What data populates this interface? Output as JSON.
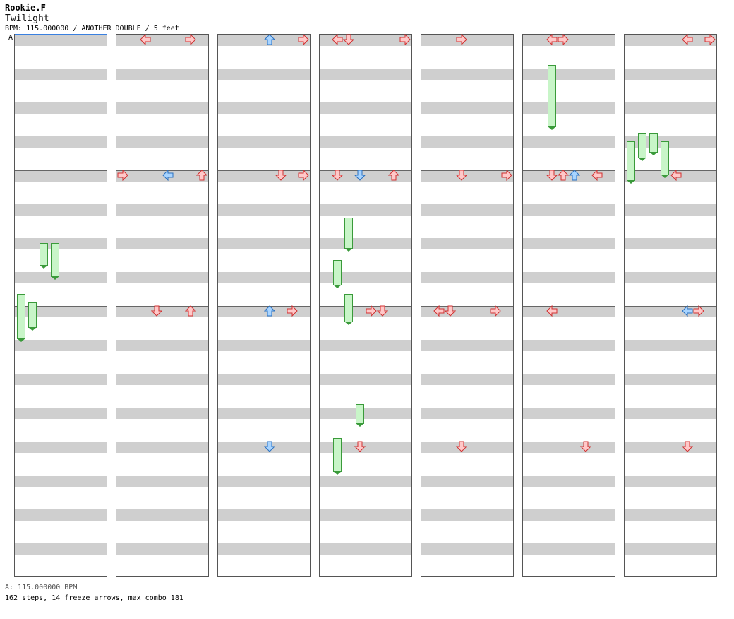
{
  "header": {
    "artist": "Rookie.F",
    "title": "Twilight",
    "info": "BPM: 115.000000 / ANOTHER DOUBLE / 5 feet"
  },
  "section_label": "A",
  "footer": {
    "bpm_line": "A: 115.000000 BPM",
    "stats_line": "162 steps, 14 freeze arrows, max combo 181"
  },
  "colors": {
    "red_fill": "#ffc8c8",
    "red_stroke": "#d03030",
    "blue_fill": "#a8d4ff",
    "blue_stroke": "#2a70c0",
    "pink_fill": "#ffc8ff",
    "pink_stroke": "#c040c0",
    "freeze_fill": "#c8f5c8",
    "freeze_stroke": "#3a9a3a",
    "band": "#cfcfcf"
  },
  "chart": {
    "columns": 7,
    "measures_per_column": 4,
    "beats_per_measure": 4,
    "lanes": 8,
    "notes": [
      [
        1,
        0,
        2,
        "r",
        "L"
      ],
      [
        1,
        0,
        6,
        "r",
        "R"
      ],
      [
        1,
        1,
        4,
        "b",
        "L"
      ],
      [
        1,
        1,
        7,
        "r",
        "U"
      ],
      [
        1,
        1,
        0,
        "r",
        "R"
      ],
      [
        1,
        2,
        6,
        "r",
        "U"
      ],
      [
        1,
        2,
        3,
        "r",
        "D"
      ],
      [
        2,
        0,
        4,
        "b",
        "U"
      ],
      [
        2,
        0,
        7,
        "r",
        "R"
      ],
      [
        2,
        1,
        5,
        "r",
        "D"
      ],
      [
        2,
        1,
        7,
        "r",
        "R"
      ],
      [
        2,
        2,
        4,
        "b",
        "U"
      ],
      [
        2,
        2,
        6,
        "r",
        "R"
      ],
      [
        2,
        3,
        4,
        "b",
        "D"
      ],
      [
        3,
        0,
        2,
        "r",
        "D"
      ],
      [
        3,
        0,
        7,
        "r",
        "R"
      ],
      [
        3,
        0,
        1,
        "r",
        "L"
      ],
      [
        3,
        1,
        3,
        "b",
        "D"
      ],
      [
        3,
        1,
        1,
        "r",
        "D"
      ],
      [
        3,
        1,
        6,
        "r",
        "U"
      ],
      [
        3,
        2,
        4,
        "r",
        "R"
      ],
      [
        3,
        2,
        5,
        "r",
        "D"
      ],
      [
        3,
        3,
        3,
        "r",
        "D"
      ],
      [
        4,
        0,
        3,
        "r",
        "R"
      ],
      [
        4,
        1,
        3,
        "r",
        "D"
      ],
      [
        4,
        1,
        7,
        "r",
        "R"
      ],
      [
        4,
        2,
        6,
        "r",
        "R"
      ],
      [
        4,
        2,
        1,
        "r",
        "L"
      ],
      [
        4,
        2,
        2,
        "r",
        "D"
      ],
      [
        4,
        3,
        3,
        "r",
        "D"
      ],
      [
        5,
        0,
        2,
        "r",
        "L"
      ],
      [
        5,
        0,
        3,
        "r",
        "R"
      ],
      [
        5,
        1,
        2,
        "r",
        "D"
      ],
      [
        5,
        1,
        4,
        "b",
        "U"
      ],
      [
        5,
        1,
        6,
        "r",
        "L"
      ],
      [
        5,
        1,
        3,
        "r",
        "U"
      ],
      [
        5,
        2,
        2,
        "r",
        "L"
      ],
      [
        5,
        3,
        5,
        "r",
        "D"
      ],
      [
        6,
        0,
        5,
        "r",
        "L"
      ],
      [
        6,
        0,
        7,
        "r",
        "R"
      ],
      [
        6,
        1,
        4,
        "r",
        "L"
      ],
      [
        6,
        2,
        5,
        "b",
        "L"
      ],
      [
        6,
        2,
        6,
        "r",
        "R"
      ],
      [
        6,
        3,
        5,
        "r",
        "D"
      ]
    ],
    "freezes": [
      [
        0,
        6,
        2,
        0,
        8
      ],
      [
        0,
        6,
        3,
        0,
        12
      ],
      [
        0,
        7,
        0,
        2,
        16
      ],
      [
        0,
        7,
        1,
        3,
        9
      ],
      [
        3,
        5,
        2,
        1,
        11
      ],
      [
        3,
        6,
        1,
        2,
        9
      ],
      [
        3,
        7,
        2,
        2,
        10
      ],
      [
        3,
        10,
        3,
        3,
        7
      ],
      [
        3,
        11,
        1,
        3,
        12
      ],
      [
        5,
        0,
        2,
        3,
        22
      ],
      [
        6,
        2,
        1,
        3,
        9
      ],
      [
        6,
        2,
        2,
        3,
        7
      ],
      [
        6,
        3,
        3,
        0,
        12
      ],
      [
        6,
        3,
        0,
        0,
        14
      ]
    ]
  }
}
